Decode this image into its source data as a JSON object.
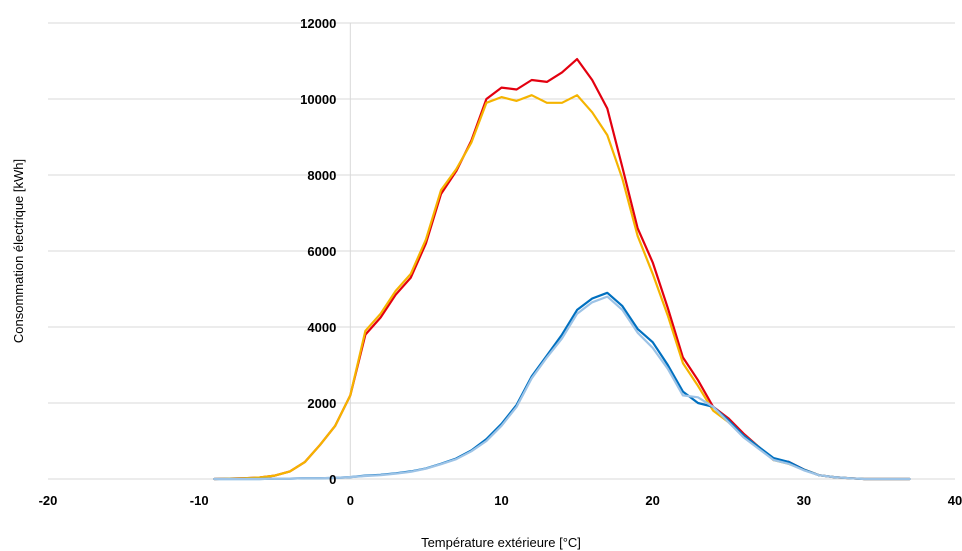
{
  "chart_data": {
    "type": "line",
    "title": "",
    "xlabel": "Température extérieure [°C]",
    "ylabel": "Consommation électrique [kWh]",
    "xlim": [
      -20,
      40
    ],
    "ylim": [
      0,
      12000
    ],
    "x_ticks": [
      "-20",
      "-10",
      "0",
      "10",
      "20",
      "30",
      "40"
    ],
    "y_ticks": [
      "0",
      "2000",
      "4000",
      "6000",
      "8000",
      "10000",
      "12000"
    ],
    "grid": "horizontal",
    "legend": "none",
    "series": [
      {
        "color": "#e3000f",
        "x": [
          -9,
          -8,
          -7,
          -6,
          -5,
          -4,
          -3,
          -2,
          -1,
          0,
          1,
          2,
          3,
          4,
          5,
          6,
          7,
          8,
          9,
          10,
          11,
          12,
          13,
          14,
          15,
          16,
          17,
          18,
          19,
          20,
          21,
          22,
          23,
          24,
          25,
          26,
          27,
          28,
          29,
          30,
          31,
          32,
          33,
          34,
          35,
          36,
          37
        ],
        "y": [
          0,
          10,
          20,
          40,
          90,
          200,
          450,
          900,
          1400,
          2200,
          3800,
          4250,
          4850,
          5300,
          6200,
          7500,
          8100,
          8900,
          10000,
          10300,
          10250,
          10500,
          10450,
          10700,
          11050,
          10500,
          9750,
          8200,
          6600,
          5700,
          4500,
          3200,
          2600,
          1900,
          1600,
          1200,
          850,
          500,
          450,
          250,
          100,
          50,
          20,
          0,
          0,
          0,
          0
        ]
      },
      {
        "color": "#f5b400",
        "x": [
          -9,
          -8,
          -7,
          -6,
          -5,
          -4,
          -3,
          -2,
          -1,
          0,
          1,
          2,
          3,
          4,
          5,
          6,
          7,
          8,
          9,
          10,
          11,
          12,
          13,
          14,
          15,
          16,
          17,
          18,
          19,
          20,
          21,
          22,
          23,
          24,
          25,
          26,
          27,
          28,
          29,
          30,
          31,
          32,
          33,
          34,
          35,
          36,
          37
        ],
        "y": [
          0,
          10,
          20,
          40,
          90,
          200,
          450,
          900,
          1400,
          2200,
          3900,
          4350,
          4950,
          5400,
          6300,
          7600,
          8150,
          8850,
          9900,
          10050,
          9950,
          10100,
          9900,
          9900,
          10100,
          9650,
          9050,
          7900,
          6400,
          5400,
          4300,
          3050,
          2450,
          1800,
          1500,
          1150,
          850,
          500,
          400,
          250,
          100,
          50,
          20,
          0,
          0,
          0,
          0
        ]
      },
      {
        "color": "#0070c0",
        "x": [
          -9,
          -8,
          -7,
          -6,
          -5,
          -4,
          -3,
          -2,
          -1,
          0,
          1,
          2,
          3,
          4,
          5,
          6,
          7,
          8,
          9,
          10,
          11,
          12,
          13,
          14,
          15,
          16,
          17,
          18,
          19,
          20,
          21,
          22,
          23,
          24,
          25,
          26,
          27,
          28,
          29,
          30,
          31,
          32,
          33,
          34,
          35,
          36,
          37
        ],
        "y": [
          0,
          0,
          0,
          0,
          10,
          10,
          20,
          20,
          30,
          50,
          90,
          110,
          150,
          200,
          280,
          400,
          540,
          750,
          1050,
          1450,
          1950,
          2700,
          3250,
          3800,
          4450,
          4750,
          4900,
          4550,
          3950,
          3600,
          3000,
          2300,
          2000,
          1900,
          1550,
          1150,
          850,
          550,
          450,
          250,
          100,
          50,
          20,
          0,
          0,
          0,
          0
        ]
      },
      {
        "color": "#9dc3e6",
        "x": [
          -9,
          -8,
          -7,
          -6,
          -5,
          -4,
          -3,
          -2,
          -1,
          0,
          1,
          2,
          3,
          4,
          5,
          6,
          7,
          8,
          9,
          10,
          11,
          12,
          13,
          14,
          15,
          16,
          17,
          18,
          19,
          20,
          21,
          22,
          23,
          24,
          25,
          26,
          27,
          28,
          29,
          30,
          31,
          32,
          33,
          34,
          35,
          36,
          37
        ],
        "y": [
          0,
          0,
          0,
          0,
          10,
          10,
          20,
          20,
          30,
          50,
          80,
          100,
          140,
          190,
          270,
          390,
          520,
          730,
          1000,
          1400,
          1900,
          2650,
          3200,
          3700,
          4350,
          4650,
          4800,
          4450,
          3850,
          3450,
          2900,
          2200,
          2150,
          1900,
          1500,
          1100,
          800,
          500,
          400,
          230,
          100,
          50,
          20,
          0,
          0,
          0,
          0
        ]
      }
    ]
  }
}
